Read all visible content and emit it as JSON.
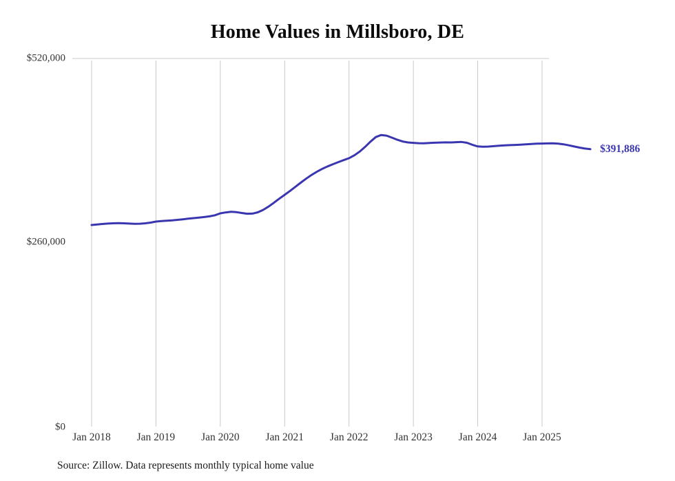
{
  "title": "Home Values in Millsboro, DE",
  "source_note": "Source: Zillow. Data represents monthly typical home value",
  "end_label": "$391,886",
  "colors": {
    "line": "#3a36b0",
    "end_label": "#3a36b0",
    "grid": "#c9c9c9",
    "axis_text": "#333333",
    "title_text": "#0b0b0b"
  },
  "y_axis": {
    "ticks": [
      "$0",
      "$260,000",
      "$520,000"
    ]
  },
  "x_axis": {
    "ticks": [
      "Jan 2018",
      "Jan 2019",
      "Jan 2020",
      "Jan 2021",
      "Jan 2022",
      "Jan 2023",
      "Jan 2024",
      "Jan 2025"
    ]
  },
  "chart_data": {
    "type": "line",
    "title": "Home Values in Millsboro, DE",
    "series_name": "Typical home value (USD)",
    "x_start": "Jan 2018",
    "frequency": "monthly",
    "ylim": [
      0,
      520000
    ],
    "y_tick_values": [
      0,
      260000,
      520000
    ],
    "grid": "vertical-yearly",
    "legend": "none",
    "final_value": 391886,
    "values": [
      284800,
      285500,
      286200,
      286800,
      287200,
      287400,
      287200,
      286800,
      286500,
      286600,
      287200,
      288200,
      289600,
      290300,
      290800,
      291400,
      292100,
      292900,
      293700,
      294500,
      295300,
      296100,
      297000,
      298600,
      301300,
      302600,
      303400,
      303000,
      301800,
      300700,
      300900,
      302800,
      306200,
      310800,
      316300,
      322000,
      327500,
      333000,
      338800,
      344600,
      350200,
      355400,
      360000,
      364100,
      367600,
      370700,
      373600,
      376400,
      379200,
      383200,
      388600,
      395200,
      402600,
      409000,
      411900,
      411000,
      408200,
      405200,
      402800,
      401400,
      400800,
      400400,
      400300,
      400600,
      401000,
      401300,
      401500,
      401400,
      401800,
      402100,
      400900,
      398100,
      395800,
      395300,
      395600,
      396200,
      396800,
      397300,
      397600,
      397900,
      398300,
      398800,
      399300,
      399700,
      399900,
      400100,
      400200,
      399800,
      398800,
      397300,
      395700,
      394100,
      392800,
      391886
    ]
  }
}
